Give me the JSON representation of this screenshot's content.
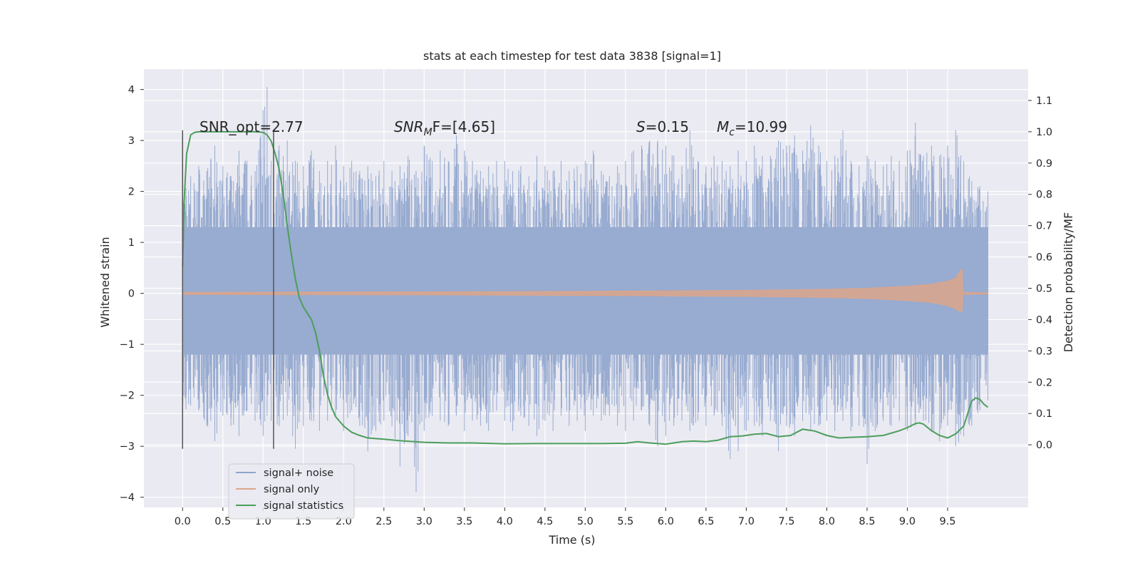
{
  "chart_data": {
    "type": "line",
    "title": "stats at each timestep for test data 3838 [signal=1]",
    "xlabel": "Time (s)",
    "ylabel_left": "Whitened strain",
    "ylabel_right": "Detection probability/MF",
    "xlim": [
      -0.48,
      10.5
    ],
    "ylim_left": [
      -4.2,
      4.4
    ],
    "ylim_right": [
      -0.2,
      1.2
    ],
    "xticks": [
      0.0,
      0.5,
      1.0,
      1.5,
      2.0,
      2.5,
      3.0,
      3.5,
      4.0,
      4.5,
      5.0,
      5.5,
      6.0,
      6.5,
      7.0,
      7.5,
      8.0,
      8.5,
      9.0,
      9.5
    ],
    "xtick_labels": [
      "0.0",
      "0.5",
      "1.0",
      "1.5",
      "2.0",
      "2.5",
      "3.0",
      "3.5",
      "4.0",
      "4.5",
      "5.0",
      "5.5",
      "6.0",
      "6.5",
      "7.0",
      "7.5",
      "8.0",
      "8.5",
      "9.0",
      "9.5"
    ],
    "yticks_left": [
      4,
      3,
      2,
      1,
      0,
      -1,
      -2,
      -3,
      -4
    ],
    "ytick_labels_left": [
      "4",
      "3",
      "2",
      "1",
      "0",
      "−1",
      "−2",
      "−3",
      "−4"
    ],
    "yticks_right": [
      1.1,
      1.0,
      0.9,
      0.8,
      0.7,
      0.6,
      0.5,
      0.4,
      0.3,
      0.2,
      0.1,
      0.0
    ],
    "ytick_labels_right": [
      "1.1",
      "1.0",
      "0.9",
      "0.8",
      "0.7",
      "0.6",
      "0.5",
      "0.4",
      "0.3",
      "0.2",
      "0.1",
      "0.0"
    ],
    "grid": true,
    "legend_position": "lower-left",
    "annotations": {
      "snr_opt": "SNR_opt=2.77",
      "snr_mf_base": "SNR",
      "snr_mf_sub": "M",
      "snr_mf_rest": "F=[4.65]",
      "s_var": "S",
      "s_rest": "=0.15",
      "mc_var": "M",
      "mc_sub": "c",
      "mc_rest": "=10.99"
    },
    "vertical_markers": [
      {
        "x": 0.0,
        "y_range": [
          -3.05,
          3.2
        ]
      },
      {
        "x": 1.13,
        "y_range": [
          -3.05,
          3.2
        ]
      }
    ],
    "series": [
      {
        "name": "signal+ noise",
        "color": "#8fa4cc",
        "axis": "left",
        "x_range": [
          0.0,
          10.0
        ],
        "envelope": [
          [
            0.0,
            -2.7,
            2.2
          ],
          [
            0.1,
            -2.2,
            2.3
          ],
          [
            0.2,
            -2.3,
            2.5
          ],
          [
            0.3,
            -2.6,
            2.4
          ],
          [
            0.4,
            -2.9,
            2.9
          ],
          [
            0.5,
            -2.4,
            2.5
          ],
          [
            0.6,
            -2.6,
            2.3
          ],
          [
            0.7,
            -2.8,
            2.8
          ],
          [
            0.8,
            -2.3,
            2.6
          ],
          [
            0.9,
            -2.5,
            2.4
          ],
          [
            1.0,
            -2.8,
            3.6
          ],
          [
            1.05,
            -2.4,
            4.05
          ],
          [
            1.1,
            -2.5,
            2.6
          ],
          [
            1.2,
            -2.6,
            2.9
          ],
          [
            1.3,
            -2.4,
            3.0
          ],
          [
            1.4,
            -3.05,
            2.6
          ],
          [
            1.5,
            -2.6,
            2.5
          ],
          [
            1.6,
            -2.5,
            2.8
          ],
          [
            1.7,
            -2.7,
            2.4
          ],
          [
            1.8,
            -2.5,
            2.6
          ],
          [
            1.9,
            -2.4,
            2.9
          ],
          [
            2.0,
            -2.7,
            2.5
          ],
          [
            2.1,
            -2.3,
            2.6
          ],
          [
            2.2,
            -2.6,
            2.4
          ],
          [
            2.3,
            -3.1,
            2.5
          ],
          [
            2.4,
            -2.7,
            2.3
          ],
          [
            2.5,
            -2.5,
            2.6
          ],
          [
            2.6,
            -2.6,
            2.4
          ],
          [
            2.7,
            -3.4,
            2.5
          ],
          [
            2.8,
            -2.8,
            2.7
          ],
          [
            2.9,
            -3.9,
            2.4
          ],
          [
            3.0,
            -2.7,
            2.9
          ],
          [
            3.1,
            -2.4,
            2.6
          ],
          [
            3.2,
            -2.5,
            2.8
          ],
          [
            3.3,
            -2.6,
            2.6
          ],
          [
            3.4,
            -2.4,
            3.1
          ],
          [
            3.5,
            -2.7,
            2.8
          ],
          [
            3.6,
            -2.5,
            2.6
          ],
          [
            3.7,
            -2.6,
            2.4
          ],
          [
            3.8,
            -2.7,
            2.5
          ],
          [
            3.9,
            -2.3,
            2.6
          ],
          [
            4.0,
            -2.5,
            2.6
          ],
          [
            4.1,
            -2.7,
            2.4
          ],
          [
            4.2,
            -2.4,
            2.5
          ],
          [
            4.3,
            -2.6,
            2.3
          ],
          [
            4.4,
            -2.8,
            2.7
          ],
          [
            4.5,
            -2.5,
            2.5
          ],
          [
            4.6,
            -2.7,
            2.4
          ],
          [
            4.7,
            -2.4,
            2.6
          ],
          [
            4.8,
            -2.6,
            2.4
          ],
          [
            4.9,
            -2.5,
            2.5
          ],
          [
            5.0,
            -2.7,
            2.6
          ],
          [
            5.1,
            -2.4,
            2.8
          ],
          [
            5.2,
            -2.5,
            2.4
          ],
          [
            5.3,
            -2.4,
            2.3
          ],
          [
            5.4,
            -2.6,
            2.5
          ],
          [
            5.5,
            -2.7,
            2.6
          ],
          [
            5.6,
            -2.5,
            2.8
          ],
          [
            5.7,
            -2.3,
            2.9
          ],
          [
            5.8,
            -2.6,
            3.0
          ],
          [
            5.9,
            -3.0,
            3.0
          ],
          [
            6.0,
            -2.8,
            2.9
          ],
          [
            6.1,
            -2.6,
            2.7
          ],
          [
            6.2,
            -2.5,
            2.5
          ],
          [
            6.3,
            -2.7,
            3.2
          ],
          [
            6.4,
            -2.5,
            2.6
          ],
          [
            6.5,
            -2.6,
            2.5
          ],
          [
            6.6,
            -2.4,
            2.7
          ],
          [
            6.7,
            -2.6,
            2.6
          ],
          [
            6.8,
            -3.25,
            2.5
          ],
          [
            6.9,
            -3.1,
            2.8
          ],
          [
            7.0,
            -2.7,
            2.6
          ],
          [
            7.1,
            -2.6,
            2.9
          ],
          [
            7.2,
            -2.8,
            2.7
          ],
          [
            7.3,
            -2.5,
            2.7
          ],
          [
            7.4,
            -3.1,
            3.0
          ],
          [
            7.5,
            -2.6,
            2.9
          ],
          [
            7.6,
            -2.8,
            3.1
          ],
          [
            7.7,
            -2.5,
            2.8
          ],
          [
            7.8,
            -2.7,
            3.3
          ],
          [
            7.9,
            -2.6,
            2.9
          ],
          [
            8.0,
            -2.5,
            2.6
          ],
          [
            8.1,
            -2.7,
            2.7
          ],
          [
            8.2,
            -2.5,
            3.2
          ],
          [
            8.3,
            -2.7,
            2.6
          ],
          [
            8.4,
            -2.6,
            2.5
          ],
          [
            8.5,
            -3.35,
            2.7
          ],
          [
            8.6,
            -2.7,
            2.6
          ],
          [
            8.7,
            -2.5,
            2.5
          ],
          [
            8.8,
            -2.6,
            2.7
          ],
          [
            8.9,
            -2.5,
            2.6
          ],
          [
            9.0,
            -2.7,
            2.8
          ],
          [
            9.1,
            -2.6,
            3.35
          ],
          [
            9.2,
            -2.5,
            2.7
          ],
          [
            9.3,
            -2.7,
            2.9
          ],
          [
            9.4,
            -2.9,
            2.7
          ],
          [
            9.5,
            -2.6,
            2.9
          ],
          [
            9.6,
            -3.0,
            3.2
          ],
          [
            9.7,
            -2.8,
            2.6
          ],
          [
            9.8,
            -2.6,
            2.2
          ],
          [
            9.9,
            -2.3,
            2.1
          ],
          [
            10.0,
            -2.1,
            2.0
          ]
        ]
      },
      {
        "name": "signal only",
        "color": "#dca58a",
        "axis": "left",
        "x_range": [
          0.0,
          10.0
        ],
        "envelope": [
          [
            0.0,
            -0.02,
            0.02
          ],
          [
            3.0,
            -0.03,
            0.03
          ],
          [
            5.0,
            -0.04,
            0.04
          ],
          [
            6.0,
            -0.05,
            0.05
          ],
          [
            7.0,
            -0.06,
            0.06
          ],
          [
            8.0,
            -0.08,
            0.08
          ],
          [
            8.5,
            -0.1,
            0.1
          ],
          [
            9.0,
            -0.14,
            0.14
          ],
          [
            9.3,
            -0.18,
            0.18
          ],
          [
            9.5,
            -0.24,
            0.24
          ],
          [
            9.6,
            -0.3,
            0.3
          ],
          [
            9.65,
            -0.36,
            0.42
          ],
          [
            9.68,
            -0.35,
            0.48
          ],
          [
            9.69,
            -0.02,
            0.02
          ],
          [
            10.0,
            -0.01,
            0.01
          ]
        ]
      },
      {
        "name": "signal statistics",
        "color": "#4c9e5c",
        "axis": "right",
        "x": [
          0.0,
          0.02,
          0.05,
          0.1,
          0.15,
          0.2,
          0.3,
          0.4,
          0.5,
          0.6,
          0.7,
          0.8,
          0.9,
          1.0,
          1.05,
          1.1,
          1.15,
          1.2,
          1.25,
          1.3,
          1.35,
          1.4,
          1.45,
          1.5,
          1.55,
          1.6,
          1.65,
          1.7,
          1.75,
          1.8,
          1.85,
          1.9,
          2.0,
          2.1,
          2.2,
          2.3,
          2.5,
          2.7,
          3.0,
          3.3,
          3.6,
          4.0,
          4.4,
          4.8,
          5.2,
          5.5,
          5.65,
          5.8,
          6.0,
          6.2,
          6.35,
          6.5,
          6.65,
          6.8,
          6.95,
          7.1,
          7.25,
          7.4,
          7.55,
          7.7,
          7.85,
          8.0,
          8.15,
          8.3,
          8.5,
          8.7,
          8.9,
          9.0,
          9.1,
          9.15,
          9.2,
          9.3,
          9.4,
          9.5,
          9.6,
          9.7,
          9.8,
          9.85,
          9.9,
          9.95,
          10.0
        ],
        "y": [
          0.57,
          0.78,
          0.93,
          0.99,
          0.998,
          1.0,
          1.0,
          1.0,
          1.0,
          1.0,
          1.0,
          1.0,
          1.0,
          0.998,
          0.99,
          0.97,
          0.93,
          0.88,
          0.8,
          0.7,
          0.61,
          0.53,
          0.47,
          0.44,
          0.42,
          0.4,
          0.36,
          0.3,
          0.22,
          0.16,
          0.12,
          0.09,
          0.06,
          0.04,
          0.03,
          0.022,
          0.018,
          0.013,
          0.008,
          0.006,
          0.006,
          0.003,
          0.004,
          0.004,
          0.004,
          0.005,
          0.01,
          0.006,
          0.002,
          0.01,
          0.012,
          0.01,
          0.015,
          0.026,
          0.028,
          0.034,
          0.036,
          0.026,
          0.03,
          0.05,
          0.044,
          0.03,
          0.022,
          0.024,
          0.026,
          0.03,
          0.045,
          0.055,
          0.068,
          0.07,
          0.066,
          0.045,
          0.03,
          0.022,
          0.035,
          0.06,
          0.14,
          0.15,
          0.145,
          0.13,
          0.12
        ]
      }
    ]
  }
}
